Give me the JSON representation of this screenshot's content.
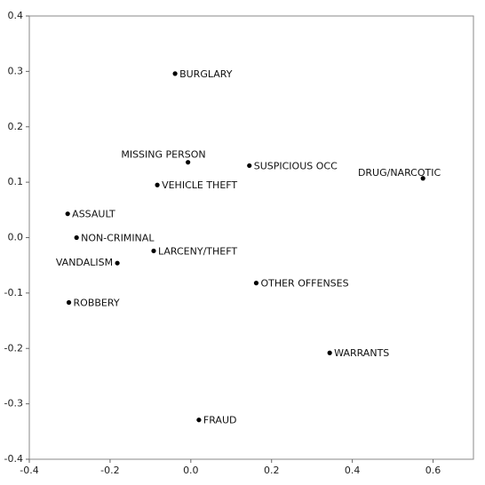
{
  "chart_data": {
    "type": "scatter",
    "labels": [
      "BURGLARY",
      "MISSING PERSON",
      "SUSPICIOUS OCC",
      "DRUG/NARCOTIC",
      "VEHICLE THEFT",
      "ASSAULT",
      "NON-CRIMINAL",
      "LARCENY/THEFT",
      "VANDALISM",
      "OTHER OFFENSES",
      "ROBBERY",
      "WARRANTS",
      "FRAUD"
    ],
    "x": [
      -0.039,
      -0.007,
      0.145,
      0.575,
      -0.083,
      -0.305,
      -0.283,
      -0.092,
      -0.182,
      0.162,
      -0.302,
      0.344,
      0.02
    ],
    "values": [
      0.296,
      0.136,
      0.13,
      0.107,
      0.095,
      0.043,
      0.0,
      -0.024,
      -0.046,
      -0.082,
      -0.117,
      -0.208,
      -0.329
    ],
    "color": "#000000",
    "xlim": [
      -0.4,
      0.7
    ],
    "ylim": [
      -0.4,
      0.4
    ],
    "xticks": [
      -0.4,
      -0.2,
      {
        "value": 0,
        "label": "0.0"
      },
      0.2,
      0.4,
      0.6
    ],
    "yticks": [
      -0.4,
      -0.3,
      -0.2,
      -0.1,
      {
        "value": 0,
        "label": "0.0"
      },
      0.1,
      0.2,
      0.3,
      0.4
    ]
  }
}
